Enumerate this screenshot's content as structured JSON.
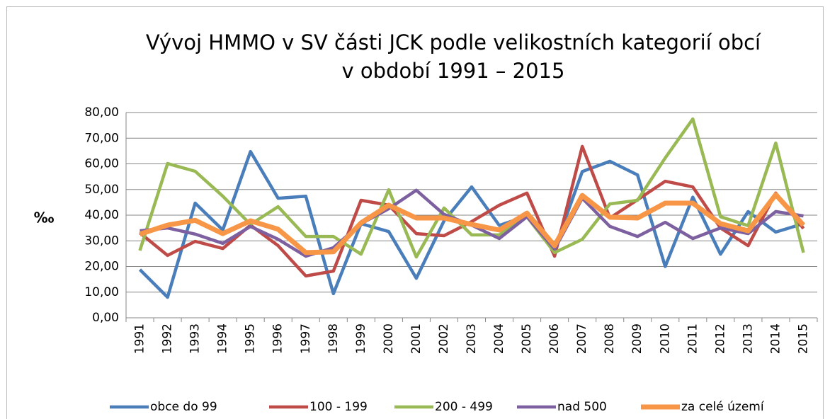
{
  "chart_data": {
    "type": "line",
    "title": "Vývoj HMMO v SV části JCK podle velikostních kategorií obcí",
    "subtitle": "v období 1991 –  2015",
    "y_label": "‰",
    "categories": [
      "1991",
      "1992",
      "1993",
      "1994",
      "1995",
      "1996",
      "1997",
      "1998",
      "1999",
      "2000",
      "2001",
      "2002",
      "2003",
      "2004",
      "2005",
      "2006",
      "2007",
      "2008",
      "2009",
      "2010",
      "2011",
      "2012",
      "2013",
      "2014",
      "2015"
    ],
    "series": [
      {
        "name": "obce do 99",
        "color": "#4a7ebb",
        "values": [
          18.8,
          8,
          44.7,
          34.2,
          64.8,
          46.6,
          47.4,
          9.4,
          36.7,
          33.6,
          15.4,
          37.8,
          51,
          36,
          39.7,
          26.8,
          57,
          61,
          55.7,
          20,
          47,
          24.8,
          41.4,
          33.4,
          36.7
        ]
      },
      {
        "name": "100 - 199",
        "color": "#be4b48",
        "values": [
          33.1,
          24.3,
          29.8,
          27,
          36.1,
          28.1,
          16.3,
          18.2,
          45.8,
          43.9,
          32.8,
          32,
          37.5,
          43.9,
          48.6,
          24,
          66.8,
          38.9,
          46,
          53.2,
          51,
          35,
          28.1,
          48.6,
          34.8
        ]
      },
      {
        "name": "200 - 499",
        "color": "#98b954",
        "values": [
          26.2,
          60.1,
          57.1,
          47.4,
          36.4,
          43.3,
          31.7,
          31.7,
          24.8,
          49.9,
          23.7,
          42.8,
          32.3,
          32.3,
          39.4,
          25.4,
          30.6,
          44.4,
          45.8,
          62.3,
          77.5,
          39.4,
          35.9,
          68.1,
          25.4
        ]
      },
      {
        "name": "nad 500",
        "color": "#7d60a0",
        "values": [
          33.9,
          35,
          32.6,
          29,
          35.6,
          30.6,
          24,
          27.3,
          36.7,
          42.5,
          49.7,
          40.3,
          36.1,
          30.9,
          39.4,
          26.8,
          46.6,
          35.6,
          31.7,
          37.2,
          30.9,
          35,
          32.8,
          41.4,
          39.7
        ]
      },
      {
        "name": "za celé území",
        "color": "#f79646",
        "values": [
          32.6,
          36.1,
          38,
          32.8,
          37.8,
          34.5,
          25.4,
          25.7,
          37,
          43.9,
          38.9,
          38.9,
          36.4,
          34.2,
          40.8,
          28.1,
          47.7,
          39.2,
          38.9,
          44.7,
          44.7,
          36.7,
          33.9,
          48,
          36.1
        ]
      }
    ],
    "ylim": [
      0,
      80
    ],
    "yticks": [
      {
        "value": 0,
        "label": "0,00"
      },
      {
        "value": 10,
        "label": "10,00"
      },
      {
        "value": 20,
        "label": "20,00"
      },
      {
        "value": 30,
        "label": "30,00"
      },
      {
        "value": 40,
        "label": "40,00"
      },
      {
        "value": 50,
        "label": "50,00"
      },
      {
        "value": 60,
        "label": "60,00"
      },
      {
        "value": 70,
        "label": "70,00"
      },
      {
        "value": 80,
        "label": "80,00"
      }
    ],
    "grid": true,
    "legend": "bottom"
  }
}
